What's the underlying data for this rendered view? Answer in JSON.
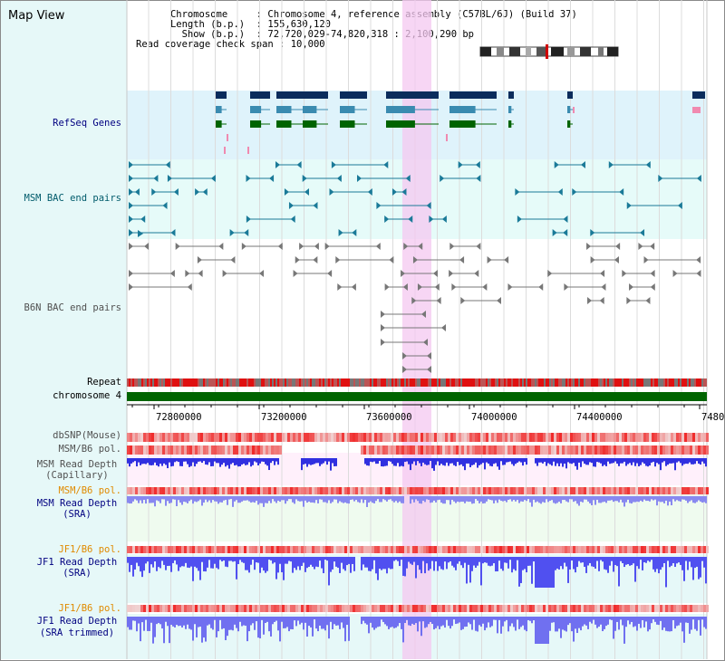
{
  "app": {
    "title": "Map View"
  },
  "info": {
    "chromosome_key": "Chromosome",
    "chromosome_val": "Chromosome 4, reference assembly (C57BL/6J) (Build 37)",
    "length_key": "Length (b.p.)",
    "length_val": "155,630,120",
    "show_key": "Show (b.p.)",
    "show_val": "72,720,029-74,820,318 : 2,100,290 bp",
    "coverage_key": "Read coverage check span",
    "coverage_val": "10,000"
  },
  "tracks": {
    "refseq": "RefSeq Genes",
    "msm_bac": "MSM BAC end pairs",
    "b6n_bac": "B6N BAC end pairs",
    "repeat": "Repeat",
    "chromosome": "chromosome 4",
    "dbsnp": "dbSNP(Mouse)",
    "msm_b6_pol": "MSM/B6 pol.",
    "msm_depth_cap_1": "MSM Read Depth",
    "msm_depth_cap_2": "(Capillary)",
    "msm_b6_pol_2": "MSM/B6 pol.",
    "msm_depth_sra_1": "MSM Read Depth",
    "msm_depth_sra_2": "(SRA)",
    "jf1_b6_pol": "JF1/B6 pol.",
    "jf1_depth_sra_1": "JF1 Read Depth",
    "jf1_depth_sra_2": "(SRA)",
    "jf1_b6_pol_2": "JF1/B6 pol.",
    "jf1_depth_trim_1": "JF1 Read Depth",
    "jf1_depth_trim_2": "(SRA trimmed)"
  },
  "axis": {
    "ticks": [
      "72800000",
      "73200000",
      "73600000",
      "74000000",
      "74400000",
      "7480"
    ]
  },
  "colors": {
    "label_blue": "#000080",
    "label_teal": "#005b6b",
    "label_gray": "#505050",
    "label_orange": "#e08a00",
    "highlight": "#f4c8f0",
    "chromosome_bar": "#006400"
  }
}
